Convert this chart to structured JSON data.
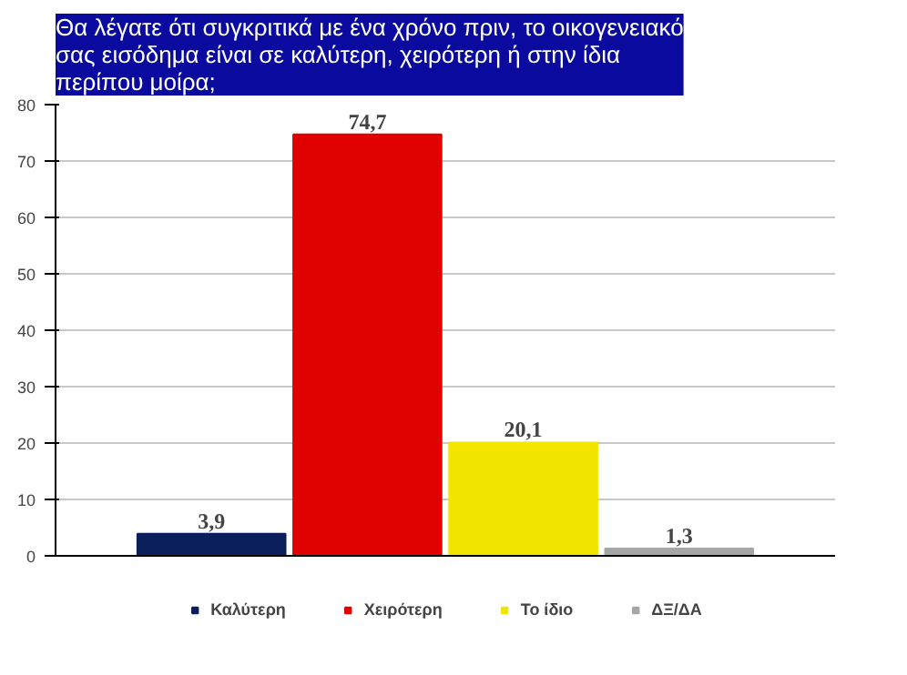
{
  "chart_data": {
    "type": "bar",
    "title": "Θα λέγατε ότι συγκριτικά με ένα χρόνο πριν, το οικογενειακό\nσας εισόδημα είναι σε καλύτερη, χειρότερη ή στην ίδια\nπερίπου μοίρα;",
    "categories": [
      null
    ],
    "series": [
      {
        "name": "Καλύτερη",
        "color": "#0a1f5c",
        "values": [
          3.9
        ],
        "value_labels": [
          "3,9"
        ]
      },
      {
        "name": "Χειρότερη",
        "color": "#e00000",
        "values": [
          74.7
        ],
        "value_labels": [
          "74,7"
        ]
      },
      {
        "name": "Το ίδιο",
        "color": "#f2e600",
        "values": [
          20.1
        ],
        "value_labels": [
          "20,1"
        ]
      },
      {
        "name": "ΔΞ/ΔΑ",
        "color": "#a6a6a6",
        "values": [
          1.3
        ],
        "value_labels": [
          "1,3"
        ]
      }
    ],
    "ylim": [
      0,
      80
    ],
    "yticks": [
      0,
      10,
      20,
      30,
      40,
      50,
      60,
      70,
      80
    ],
    "grid": "y",
    "legend": "bottom"
  }
}
